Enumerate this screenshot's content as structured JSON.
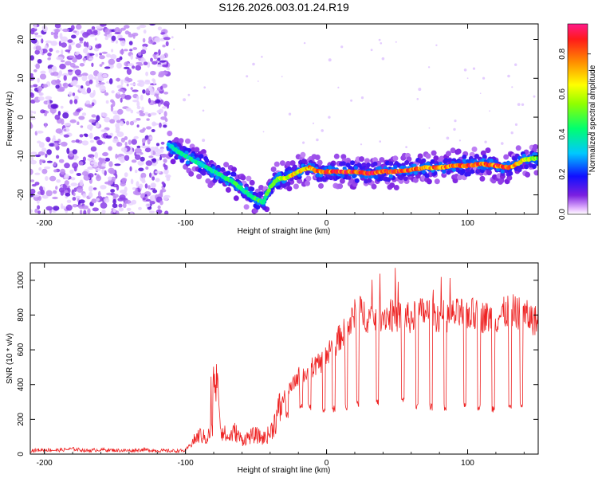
{
  "title": "S126.2026.003.01.24.R19",
  "colors": {
    "spec_low": "#8a2be2",
    "snr_line": "#ee2222",
    "axis": "#000000"
  },
  "chart_data": [
    {
      "type": "heatmap",
      "title": "S126.2026.003.01.24.R19",
      "xlabel": "Height of straight line (km)",
      "ylabel": "Frequency (Hz)",
      "xlim": [
        -210,
        150
      ],
      "ylim": [
        -25,
        24
      ],
      "xticks": [
        -200,
        -100,
        0,
        100
      ],
      "yticks": [
        -20,
        -10,
        0,
        10,
        20
      ],
      "xtick_labels": [
        "-200",
        "-100",
        "0",
        "100"
      ],
      "ytick_labels": [
        "-20",
        "-10",
        "0",
        "10",
        "20"
      ],
      "colorbar": {
        "label": "Normalized spectral amplitude",
        "range": [
          0,
          0.95
        ],
        "ticks": [
          0.0,
          0.2,
          0.4,
          0.6,
          0.8
        ],
        "tick_labels": [
          "0.0",
          "0.2",
          "0.4",
          "0.6",
          "0.8"
        ]
      },
      "noise_region_x": [
        -210,
        -112
      ],
      "ridge": {
        "x": [
          -112,
          -105,
          -95,
          -85,
          -75,
          -65,
          -55,
          -45,
          -40,
          -35,
          -28,
          -20,
          -12,
          -6,
          0,
          10,
          20,
          30,
          40,
          50,
          60,
          70,
          80,
          90,
          100,
          110,
          120,
          130,
          140,
          150
        ],
        "freq": [
          -7,
          -9,
          -11,
          -13,
          -15,
          -17,
          -20,
          -22,
          -18,
          -16,
          -15.5,
          -14,
          -13,
          -14,
          -14,
          -14,
          -14,
          -14.5,
          -14,
          -14,
          -13.5,
          -13,
          -13,
          -12.5,
          -12.5,
          -12,
          -12.5,
          -13,
          -11,
          -10.5
        ],
        "amplitude": [
          0.35,
          0.4,
          0.45,
          0.4,
          0.45,
          0.5,
          0.45,
          0.5,
          0.55,
          0.6,
          0.7,
          0.75,
          0.8,
          0.85,
          0.9,
          0.9,
          0.9,
          0.9,
          0.9,
          0.9,
          0.85,
          0.85,
          0.85,
          0.85,
          0.9,
          0.9,
          0.9,
          0.85,
          0.7,
          0.6
        ]
      }
    },
    {
      "type": "line",
      "xlabel": "Height of straight line (km)",
      "ylabel": "SNR (10 * v/v)",
      "xlim": [
        -210,
        150
      ],
      "ylim": [
        0,
        1100
      ],
      "xticks": [
        -200,
        -100,
        0,
        100
      ],
      "yticks": [
        0,
        200,
        400,
        600,
        800,
        1000
      ],
      "xtick_labels": [
        "-200",
        "-100",
        "0",
        "100"
      ],
      "ytick_labels": [
        "0",
        "200",
        "400",
        "600",
        "800",
        "1000"
      ],
      "series": [
        {
          "name": "SNR",
          "x": [
            -210,
            -200,
            -190,
            -180,
            -170,
            -160,
            -150,
            -140,
            -130,
            -120,
            -110,
            -100,
            -95,
            -90,
            -85,
            -80,
            -78,
            -75,
            -70,
            -65,
            -60,
            -55,
            -50,
            -45,
            -40,
            -35,
            -30,
            -25,
            -20,
            -15,
            -10,
            -5,
            0,
            5,
            10,
            15,
            20,
            25,
            30,
            40,
            50,
            60,
            70,
            80,
            90,
            100,
            110,
            120,
            130,
            140,
            150
          ],
          "values": [
            20,
            25,
            22,
            30,
            20,
            25,
            22,
            20,
            25,
            20,
            18,
            20,
            70,
            110,
            90,
            160,
            520,
            150,
            90,
            130,
            80,
            100,
            110,
            90,
            120,
            220,
            330,
            380,
            450,
            460,
            500,
            520,
            560,
            620,
            680,
            720,
            800,
            820,
            780,
            800,
            790,
            780,
            820,
            790,
            800,
            810,
            790,
            780,
            830,
            800,
            760
          ]
        }
      ],
      "dropouts": {
        "x": [
          -28,
          -18,
          -12,
          -2,
          5,
          14,
          22,
          36,
          54,
          64,
          74,
          84,
          98,
          108,
          118,
          130,
          138
        ],
        "values": [
          200,
          260,
          250,
          230,
          240,
          250,
          270,
          280,
          290,
          260,
          250,
          250,
          260,
          250,
          240,
          250,
          260
        ]
      }
    }
  ]
}
